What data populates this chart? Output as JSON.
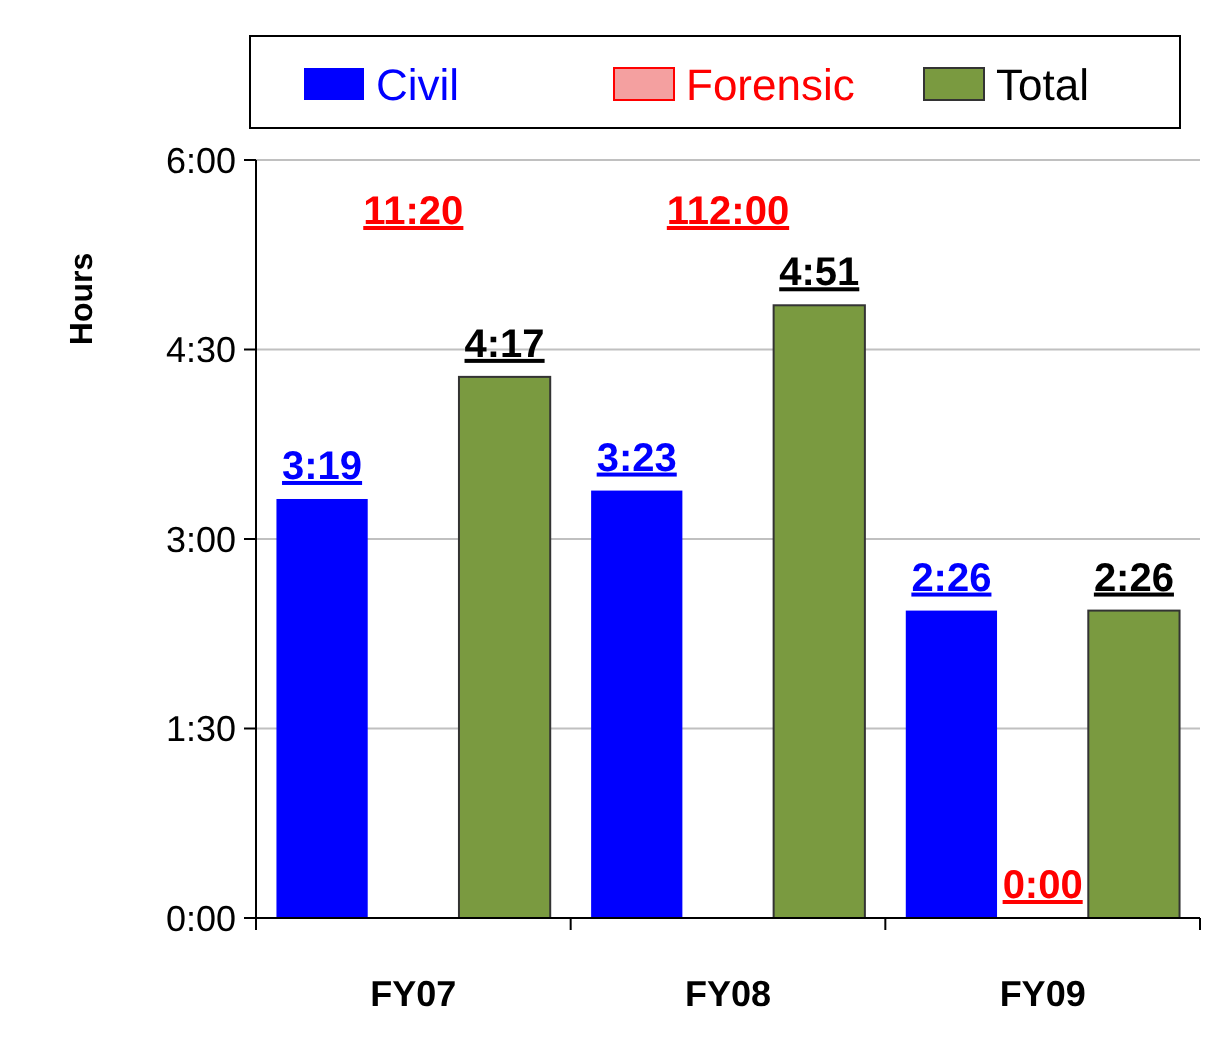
{
  "chart_data": {
    "type": "bar",
    "ylabel": "Hours",
    "categories": [
      "FY07",
      "FY08",
      "FY09"
    ],
    "series": [
      {
        "name": "Civil",
        "color": "#0000ff",
        "values": [
          3.3167,
          3.3833,
          2.4333
        ],
        "value_labels": [
          "3:19",
          "3:23",
          "2:26"
        ]
      },
      {
        "name": "Forensic",
        "color": "#f4a0a0",
        "values": [
          null,
          null,
          0
        ],
        "value_labels": [
          "11:20",
          "112:00",
          "0:00"
        ]
      },
      {
        "name": "Total",
        "color": "#7a9a40",
        "values": [
          4.2833,
          4.85,
          2.4333
        ],
        "value_labels": [
          "4:17",
          "4:51",
          "2:26"
        ]
      }
    ],
    "ylim": [
      0,
      6
    ],
    "yticks": [
      {
        "value": 0,
        "label": "0:00"
      },
      {
        "value": 1.5,
        "label": "1:30"
      },
      {
        "value": 3,
        "label": "3:00"
      },
      {
        "value": 4.5,
        "label": "4:30"
      },
      {
        "value": 6,
        "label": "6:00"
      }
    ],
    "grid": "y",
    "legend": "top"
  }
}
